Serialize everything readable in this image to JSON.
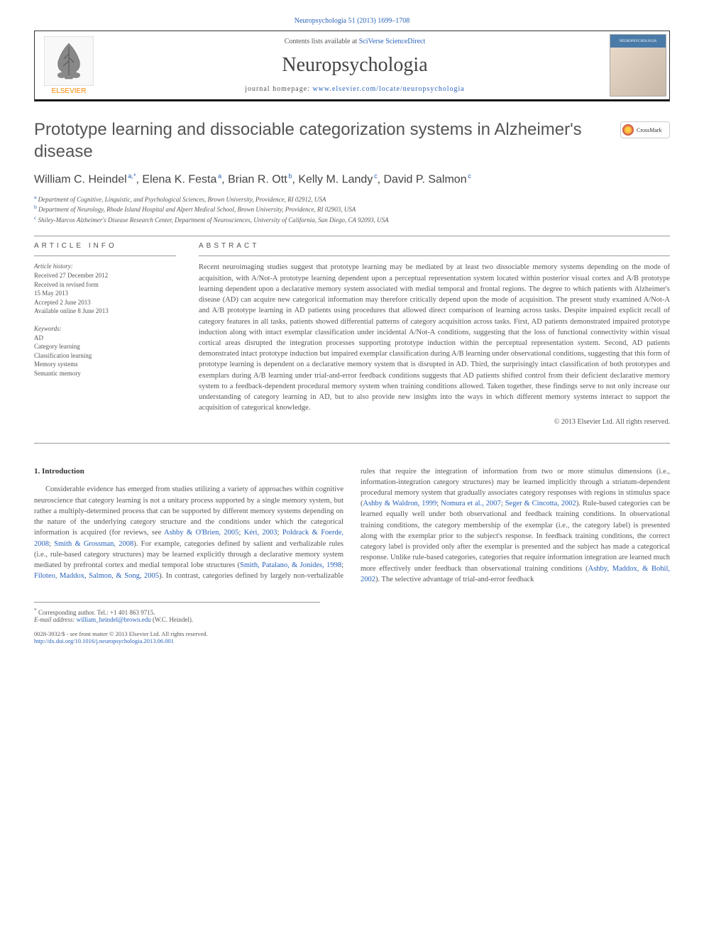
{
  "topLink": "Neuropsychologia 51 (2013) 1699–1708",
  "header": {
    "contentsPrefix": "Contents lists available at ",
    "contentsLink": "SciVerse ScienceDirect",
    "journalName": "Neuropsychologia",
    "homepagePrefix": "journal homepage: ",
    "homepageLink": "www.elsevier.com/locate/neuropsychologia",
    "publisherName": "ELSEVIER",
    "coverTitle": "NEUROPSYCHOLOGIA"
  },
  "crossmark": "CrossMark",
  "title": "Prototype learning and dissociable categorization systems in Alzheimer's disease",
  "authors": {
    "list": [
      {
        "name": "William C. Heindel",
        "marks": "a,*"
      },
      {
        "name": "Elena K. Festa",
        "marks": "a"
      },
      {
        "name": "Brian R. Ott",
        "marks": "b"
      },
      {
        "name": "Kelly M. Landy",
        "marks": "c"
      },
      {
        "name": "David P. Salmon",
        "marks": "c"
      }
    ]
  },
  "affiliations": [
    {
      "mark": "a",
      "text": "Department of Cognitive, Linguistic, and Psychological Sciences, Brown University, Providence, RI 02912, USA"
    },
    {
      "mark": "b",
      "text": "Department of Neurology, Rhode Island Hospital and Alpert Medical School, Brown University, Providence, RI 02903, USA"
    },
    {
      "mark": "c",
      "text": "Shiley-Marcos Alzheimer's Disease Research Center, Department of Neurosciences, University of California, San Diego, CA 92093, USA"
    }
  ],
  "articleInfoHead": "ARTICLE INFO",
  "abstractHead": "ABSTRACT",
  "history": {
    "label": "Article history:",
    "lines": [
      "Received 27 December 2012",
      "Received in revised form",
      "15 May 2013",
      "Accepted 2 June 2013",
      "Available online 8 June 2013"
    ]
  },
  "keywords": {
    "label": "Keywords:",
    "lines": [
      "AD",
      "Category learning",
      "Classification learning",
      "Memory systems",
      "Semantic memory"
    ]
  },
  "abstract": "Recent neuroimaging studies suggest that prototype learning may be mediated by at least two dissociable memory systems depending on the mode of acquisition, with A/Not-A prototype learning dependent upon a perceptual representation system located within posterior visual cortex and A/B prototype learning dependent upon a declarative memory system associated with medial temporal and frontal regions. The degree to which patients with Alzheimer's disease (AD) can acquire new categorical information may therefore critically depend upon the mode of acquisition. The present study examined A/Not-A and A/B prototype learning in AD patients using procedures that allowed direct comparison of learning across tasks. Despite impaired explicit recall of category features in all tasks, patients showed differential patterns of category acquisition across tasks. First, AD patients demonstrated impaired prototype induction along with intact exemplar classification under incidental A/Not-A conditions, suggesting that the loss of functional connectivity within visual cortical areas disrupted the integration processes supporting prototype induction within the perceptual representation system. Second, AD patients demonstrated intact prototype induction but impaired exemplar classification during A/B learning under observational conditions, suggesting that this form of prototype learning is dependent on a declarative memory system that is disrupted in AD. Third, the surprisingly intact classification of both prototypes and exemplars during A/B learning under trial-and-error feedback conditions suggests that AD patients shifted control from their deficient declarative memory system to a feedback-dependent procedural memory system when training conditions allowed. Taken together, these findings serve to not only increase our understanding of category learning in AD, but to also provide new insights into the ways in which different memory systems interact to support the acquisition of categorical knowledge.",
  "copyright": "© 2013 Elsevier Ltd. All rights reserved.",
  "introHead": "1.  Introduction",
  "body": {
    "p1a": "Considerable evidence has emerged from studies utilizing a variety of approaches within cognitive neuroscience that category learning is not a unitary process supported by a single memory system, but rather a multiply-determined process that can be supported by different memory systems depending on the nature of the underlying category structure and the conditions under which the categorical information is acquired (for reviews, see ",
    "p1link1": "Ashby & O'Brien, 2005",
    "p1sep1": "; ",
    "p1link2": "Kéri, 2003",
    "p1sep2": "; ",
    "p1link3": "Poldrack & Foerde, 2008",
    "p1sep3": "; ",
    "p1link4": "Smith & Grossman, 2008",
    "p1b": "). For example, categories defined by salient and verbalizable rules (i.e., rule-based category structures) may be learned explicitly through a declarative memory system mediated by prefrontal cortex and medial temporal lobe structures (",
    "p1link5": "Smith, Patalano, & Jonides, 1998",
    "p1sep4": "; ",
    "p1link6": "Filoteo, Maddox, Salmon, & Song, 2005",
    "p1c": "). In contrast, categories defined by largely non-verbalizable rules that require the integration of information from two or more stimulus dimensions (i.e., information-integration category structures) may be learned implicitly through a striatum-dependent procedural memory system that gradually associates category responses with regions in stimulus space (",
    "p1link7": "Ashby & Waldron, 1999",
    "p1sep5": "; ",
    "p1link8": "Nomura et al., 2007",
    "p1sep6": "; ",
    "p1link9": "Seger & Cincotta, 2002",
    "p1d": "). Rule-based categories can be learned equally well under both observational and feedback training conditions. In observational training conditions, the category membership of the exemplar (i.e., the category label) is presented along with the exemplar prior to the subject's response. In feedback training conditions, the correct category label is provided only after the exemplar is presented and the subject has made a categorical response. Unlike rule-based categories, categories that require information integration are learned much more effectively under feedback than observational training conditions (",
    "p1link10": "Ashby, Maddox, & Bohil, 2002",
    "p1e": "). The selective advantage of trial-and-error feedback"
  },
  "correspNote": {
    "mark": "*",
    "label": "Corresponding author. Tel.: ",
    "tel": "+1 401 863 9715.",
    "emailLabel": "E-mail address: ",
    "email": "william_heindel@brown.edu",
    "emailSuffix": " (W.C. Heindel)."
  },
  "footer": {
    "issn": "0028-3932/$ - see front matter © 2013 Elsevier Ltd. All rights reserved.",
    "doi": "http://dx.doi.org/10.1016/j.neuropsychologia.2013.06.001"
  },
  "colors": {
    "linkColor": "#2962b8",
    "textColor": "#555555",
    "ruleColor": "#999999",
    "elsevierOrange": "#ff8800"
  }
}
